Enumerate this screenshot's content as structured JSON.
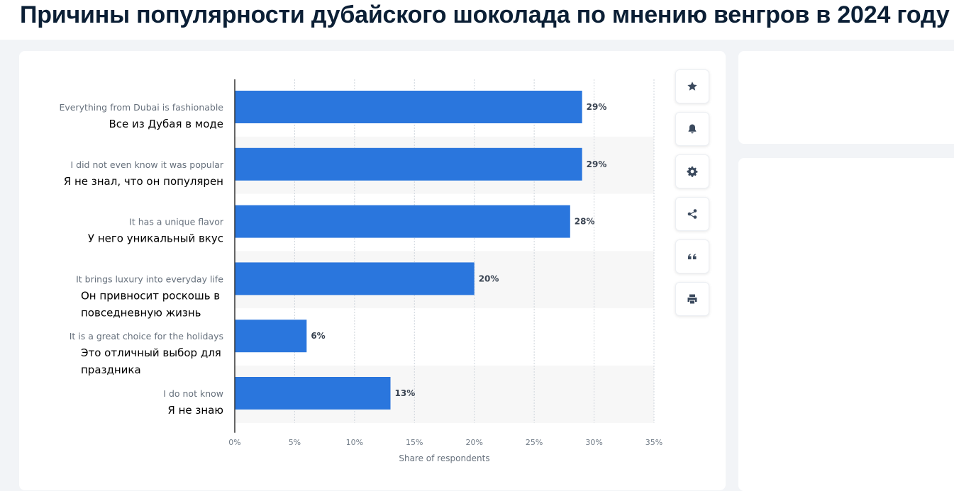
{
  "page": {
    "title": "Причины популярности дубайского шоколада по мнению венгров в 2024 году"
  },
  "toolbar": {
    "buttons": [
      {
        "name": "favorite",
        "icon": "star-icon"
      },
      {
        "name": "notify",
        "icon": "bell-icon"
      },
      {
        "name": "settings",
        "icon": "gear-icon"
      },
      {
        "name": "share",
        "icon": "share-icon"
      },
      {
        "name": "cite",
        "icon": "quote-icon"
      },
      {
        "name": "print",
        "icon": "printer-icon"
      }
    ]
  },
  "colors": {
    "bar": "#2a76dd",
    "band": "#f7f7f7",
    "grid": "#cfd5dc",
    "axis": "#333333"
  },
  "chart_data": {
    "type": "bar",
    "orientation": "horizontal",
    "categories": [
      "Everything from Dubai is fashionable",
      "I did not even know it was popular",
      "It has a unique flavor",
      "It brings luxury into everyday life",
      "It is a great choice for the holidays",
      "I do not know"
    ],
    "categories_ru": [
      [
        "Все из Дубая в моде"
      ],
      [
        "Я не знал, что он популярен"
      ],
      [
        "У него уникальный вкус"
      ],
      [
        "Он привносит роскошь в",
        "повседневную жизнь"
      ],
      [
        "Это отличный выбор для",
        "праздника"
      ],
      [
        "Я не знаю"
      ]
    ],
    "values": [
      29,
      29,
      28,
      20,
      6,
      13
    ],
    "value_labels": [
      "29%",
      "29%",
      "28%",
      "20%",
      "6%",
      "13%"
    ],
    "xlim": [
      0,
      35
    ],
    "xticks": [
      0,
      5,
      10,
      15,
      20,
      25,
      30,
      35
    ],
    "xtick_labels": [
      "0%",
      "5%",
      "10%",
      "15%",
      "20%",
      "25%",
      "30%",
      "35%"
    ],
    "xlabel": "Share of respondents",
    "grid": "vertical dotted",
    "legend": "none"
  }
}
